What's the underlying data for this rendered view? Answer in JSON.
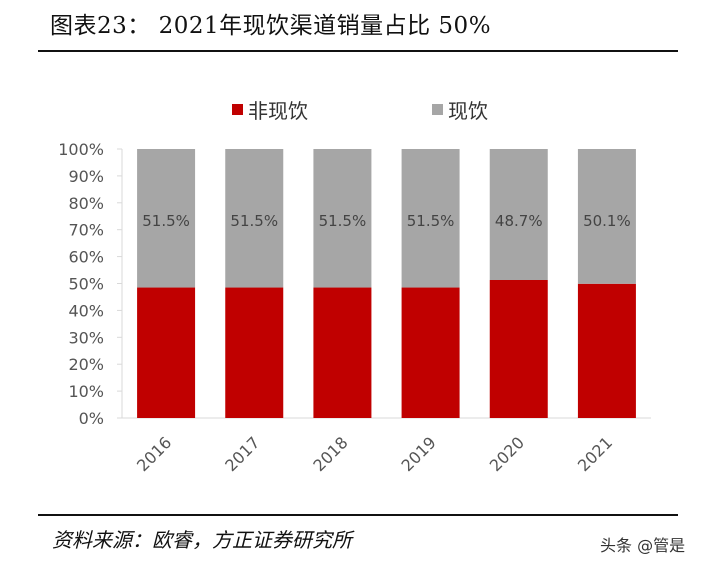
{
  "header": {
    "title": "图表23：  2021年现饮渠道销量占比 50%"
  },
  "footer": {
    "source": "资料来源：欧睿，方正证券研究所",
    "watermark": "头条 @管是"
  },
  "chart_data": {
    "type": "bar",
    "stacked": true,
    "categories": [
      "2016",
      "2017",
      "2018",
      "2019",
      "2020",
      "2021"
    ],
    "series": [
      {
        "name": "非现饮",
        "color": "#c00000",
        "values": [
          48.5,
          48.5,
          48.5,
          48.5,
          51.3,
          49.9
        ]
      },
      {
        "name": "现饮",
        "color": "#a6a6a6",
        "values": [
          51.5,
          51.5,
          51.5,
          51.5,
          48.7,
          50.1
        ]
      }
    ],
    "data_labels": [
      "51.5%",
      "51.5%",
      "51.5%",
      "51.5%",
      "48.7%",
      "50.1%"
    ],
    "y_ticks": [
      "0%",
      "10%",
      "20%",
      "30%",
      "40%",
      "50%",
      "60%",
      "70%",
      "80%",
      "90%",
      "100%"
    ],
    "ylim": [
      0,
      100
    ],
    "legend_position": "top",
    "grid": false
  }
}
